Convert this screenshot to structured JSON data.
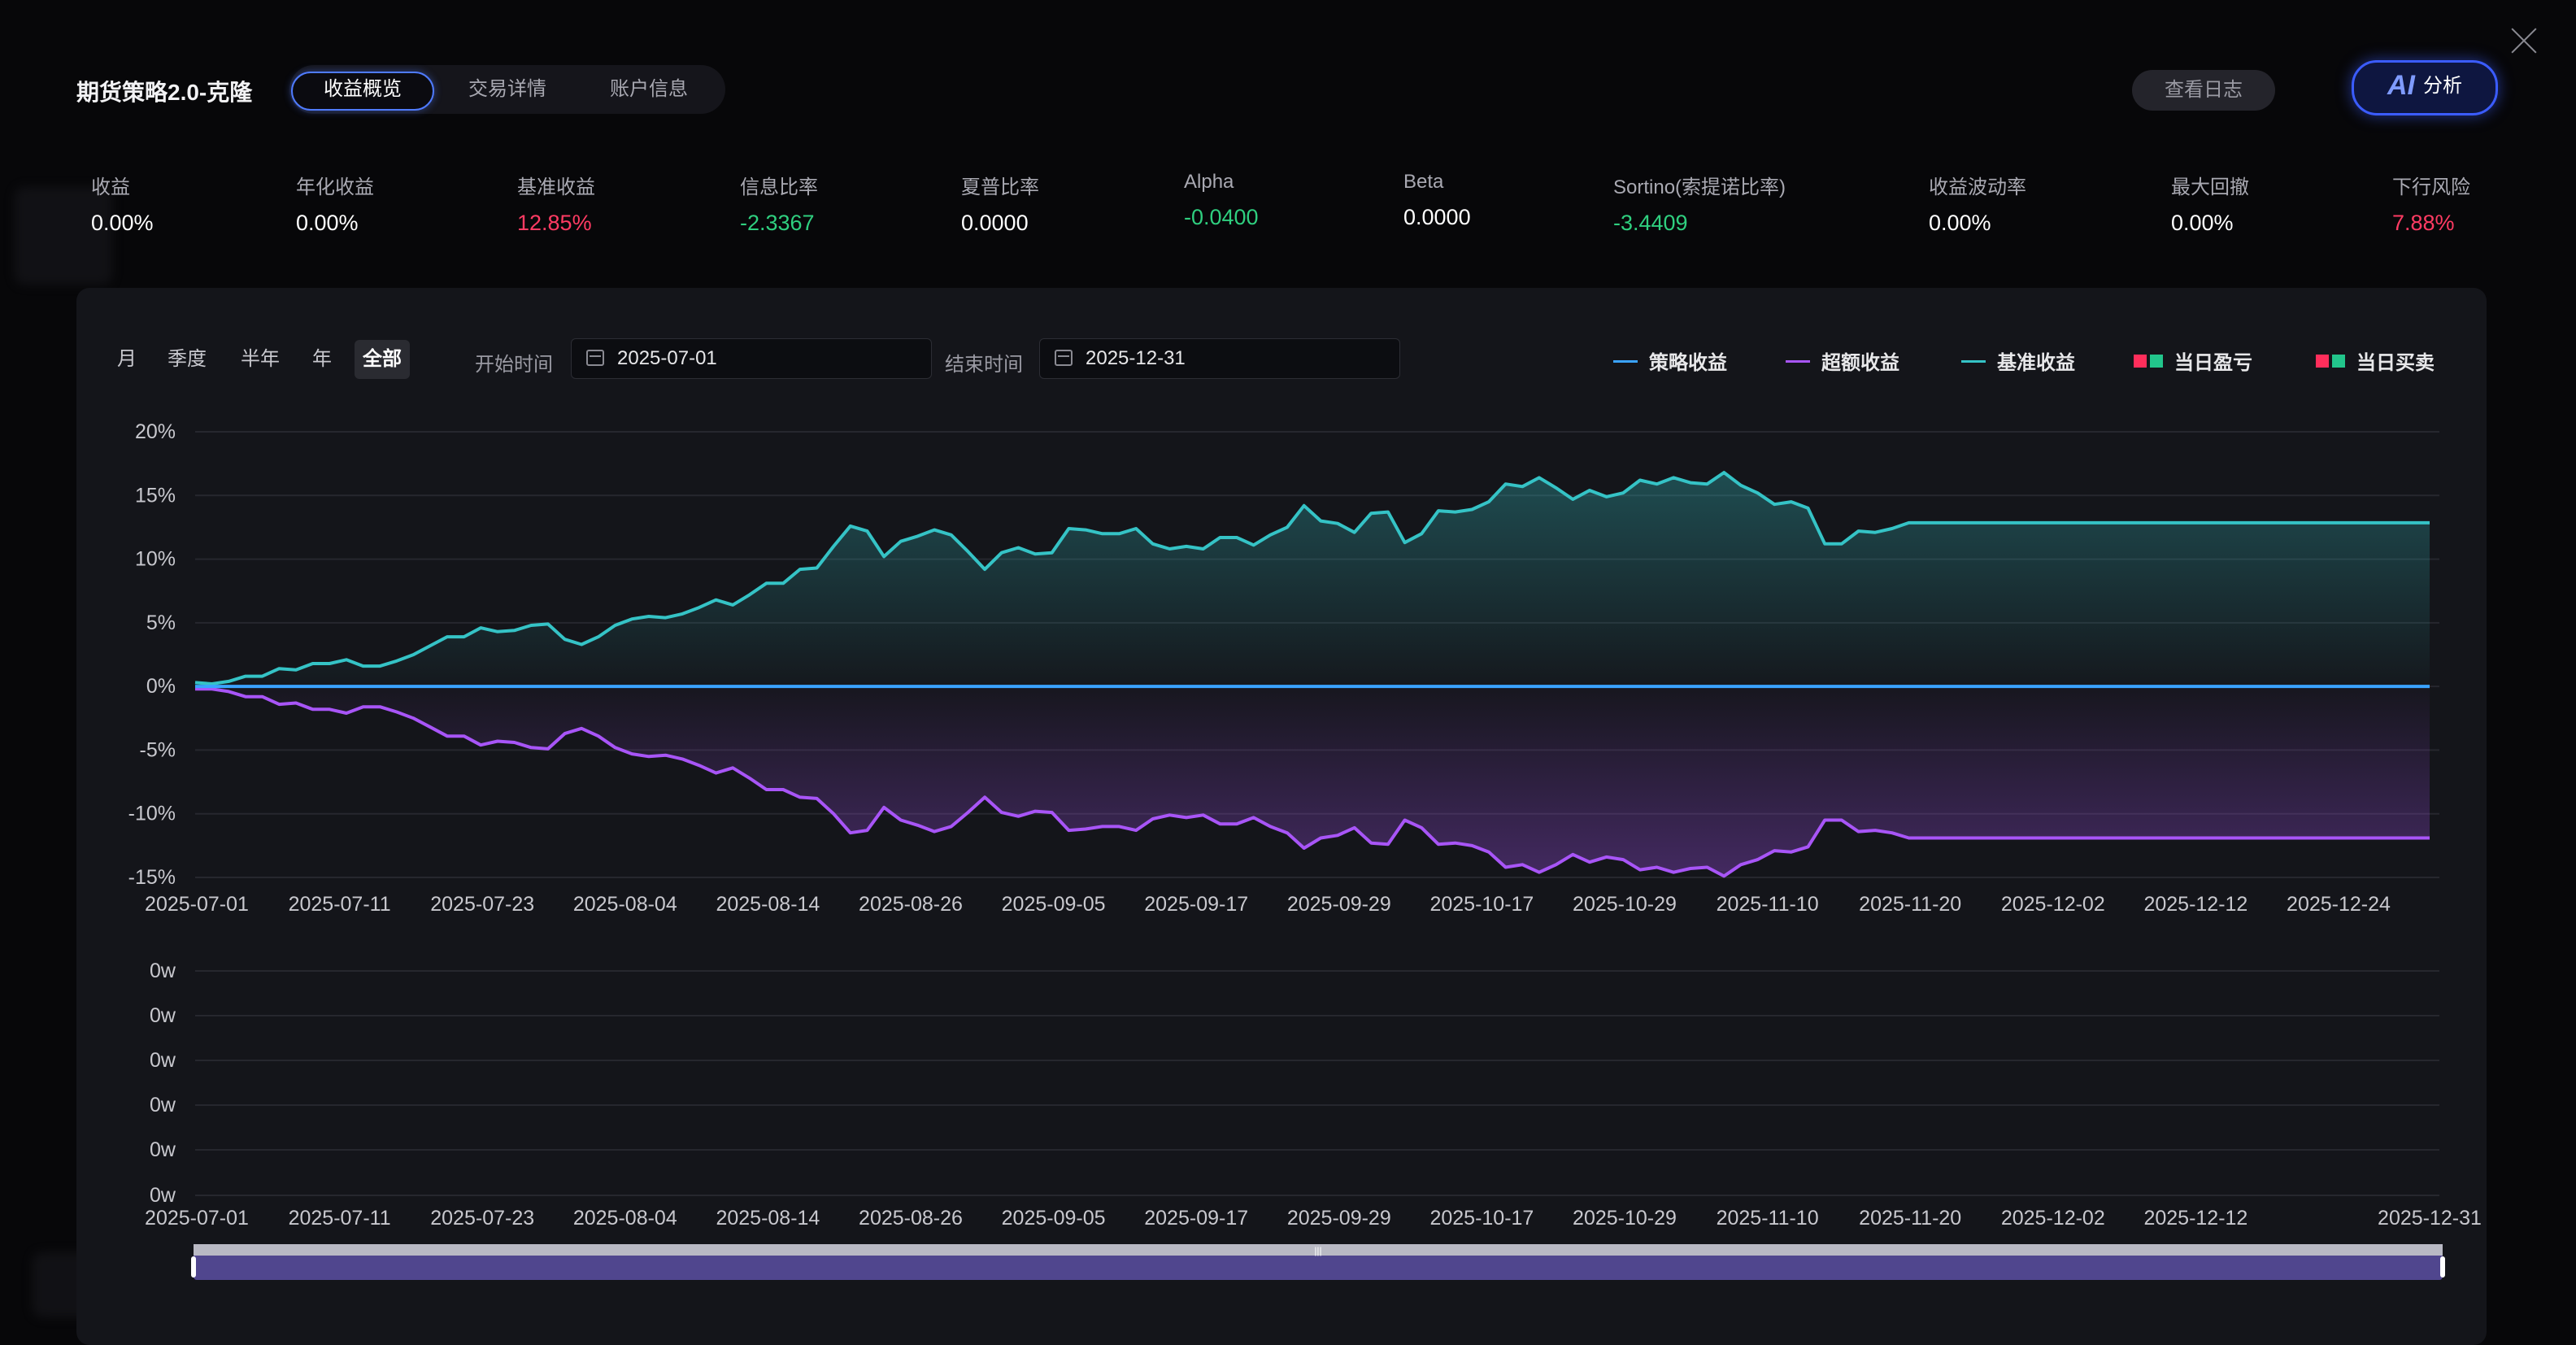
{
  "app": {
    "title": "期货策略2.0-克隆"
  },
  "tabs": [
    {
      "label": "收益概览"
    },
    {
      "label": "交易详情"
    },
    {
      "label": "账户信息"
    }
  ],
  "actions": {
    "log_label": "查看日志",
    "ai_mark": "AI",
    "ai_label": "分析"
  },
  "metrics": [
    {
      "label": "收益",
      "value": "0.00%"
    },
    {
      "label": "年化收益",
      "value": "0.00%"
    },
    {
      "label": "基准收益",
      "value": "12.85%",
      "tone": "pos"
    },
    {
      "label": "信息比率",
      "value": "-2.3367",
      "tone": "neg"
    },
    {
      "label": "夏普比率",
      "value": "0.0000"
    },
    {
      "label": "Alpha",
      "value": "-0.0400",
      "tone": "neg"
    },
    {
      "label": "Beta",
      "value": "0.0000"
    },
    {
      "label": "Sortino(索提诺比率)",
      "value": "-3.4409",
      "tone": "neg"
    },
    {
      "label": "收益波动率",
      "value": "0.00%"
    },
    {
      "label": "最大回撤",
      "value": "0.00%"
    },
    {
      "label": "下行风险",
      "value": "7.88%",
      "tone": "pos"
    }
  ],
  "filters": {
    "periods": [
      "月",
      "季度",
      "半年",
      "年",
      "全部"
    ],
    "active_period": "全部",
    "start_label": "开始时间",
    "start_value": "2025-07-01",
    "end_label": "结束时间",
    "end_value": "2025-12-31"
  },
  "legend": [
    {
      "label": "策略收益",
      "color": "#3aa3ff"
    },
    {
      "label": "超额收益",
      "color": "#a855f7"
    },
    {
      "label": "基准收益",
      "color": "#35c3c6"
    },
    {
      "label": "当日盈亏",
      "colors": [
        "#ff2e5b",
        "#22c58b"
      ]
    },
    {
      "label": "当日买卖",
      "colors": [
        "#ff2e5b",
        "#22c58b"
      ]
    }
  ],
  "chart_data": [
    {
      "type": "line",
      "x_ticks": [
        "2025-07-01",
        "2025-07-11",
        "2025-07-23",
        "2025-08-04",
        "2025-08-14",
        "2025-08-26",
        "2025-09-05",
        "2025-09-17",
        "2025-09-29",
        "2025-10-17",
        "2025-10-29",
        "2025-11-10",
        "2025-11-20",
        "2025-12-02",
        "2025-12-12",
        "2025-12-24"
      ],
      "y_ticks": [
        "20%",
        "15%",
        "10%",
        "5%",
        "0%",
        "-5%",
        "-10%",
        "-15%"
      ],
      "ylim": [
        -15,
        20
      ],
      "grid": true,
      "series": [
        {
          "name": "策略收益",
          "color": "#3aa3ff",
          "values": [
            0,
            0
          ]
        },
        {
          "name": "基准收益",
          "color": "#35c3c6",
          "values": [
            0.3,
            0.2,
            0.4,
            0.8,
            0.8,
            1.4,
            1.3,
            1.8,
            1.8,
            2.1,
            1.6,
            1.6,
            2.0,
            2.5,
            3.2,
            3.9,
            3.9,
            4.6,
            4.3,
            4.4,
            4.8,
            4.9,
            3.7,
            3.3,
            3.9,
            4.8,
            5.3,
            5.5,
            5.4,
            5.7,
            6.2,
            6.8,
            6.4,
            7.2,
            8.1,
            8.1,
            9.2,
            9.3,
            11.0,
            12.6,
            12.2,
            10.2,
            11.4,
            11.8,
            12.3,
            11.9,
            10.6,
            9.2,
            10.5,
            10.9,
            10.4,
            10.5,
            12.4,
            12.3,
            12.0,
            12.0,
            12.4,
            11.2,
            10.8,
            11.0,
            10.8,
            11.7,
            11.7,
            11.1,
            11.9,
            12.5,
            14.2,
            13.0,
            12.8,
            12.1,
            13.6,
            13.7,
            11.3,
            12.0,
            13.8,
            13.7,
            13.9,
            14.5,
            15.9,
            15.7,
            16.4,
            15.6,
            14.7,
            15.4,
            14.9,
            15.2,
            16.2,
            15.9,
            16.4,
            16.0,
            15.9,
            16.8,
            15.8,
            15.2,
            14.3,
            14.5,
            14.0,
            11.2,
            11.2,
            12.2,
            12.1,
            12.4,
            12.85,
            12.85,
            12.85,
            12.85,
            12.85,
            12.85,
            12.85,
            12.85,
            12.85,
            12.85,
            12.85,
            12.85,
            12.85,
            12.85,
            12.85,
            12.85,
            12.85,
            12.85,
            12.85,
            12.85,
            12.85,
            12.85,
            12.85,
            12.85,
            12.85,
            12.85,
            12.85,
            12.85,
            12.85,
            12.85,
            12.85,
            12.85
          ]
        },
        {
          "name": "超额收益",
          "color": "#a855f7",
          "values": [
            -0.2,
            -0.2,
            -0.4,
            -0.8,
            -0.8,
            -1.4,
            -1.3,
            -1.8,
            -1.8,
            -2.1,
            -1.6,
            -1.6,
            -2.0,
            -2.5,
            -3.2,
            -3.9,
            -3.9,
            -4.6,
            -4.3,
            -4.4,
            -4.8,
            -4.9,
            -3.7,
            -3.3,
            -3.9,
            -4.8,
            -5.3,
            -5.5,
            -5.4,
            -5.7,
            -6.2,
            -6.8,
            -6.4,
            -7.2,
            -8.1,
            -8.1,
            -8.7,
            -8.8,
            -10.0,
            -11.5,
            -11.3,
            -9.5,
            -10.5,
            -10.9,
            -11.4,
            -11.0,
            -9.9,
            -8.7,
            -9.9,
            -10.2,
            -9.8,
            -9.9,
            -11.3,
            -11.2,
            -11.0,
            -11.0,
            -11.3,
            -10.4,
            -10.1,
            -10.3,
            -10.1,
            -10.8,
            -10.8,
            -10.3,
            -11.0,
            -11.5,
            -12.7,
            -11.9,
            -11.7,
            -11.1,
            -12.3,
            -12.4,
            -10.5,
            -11.1,
            -12.4,
            -12.3,
            -12.5,
            -13.0,
            -14.2,
            -14.0,
            -14.6,
            -14.0,
            -13.2,
            -13.8,
            -13.4,
            -13.6,
            -14.4,
            -14.2,
            -14.6,
            -14.3,
            -14.2,
            -14.9,
            -14.0,
            -13.6,
            -12.9,
            -13.0,
            -12.6,
            -10.5,
            -10.5,
            -11.4,
            -11.3,
            -11.5,
            -11.9,
            -11.9,
            -11.9,
            -11.9,
            -11.9,
            -11.9,
            -11.9,
            -11.9,
            -11.9,
            -11.9,
            -11.9,
            -11.9,
            -11.9,
            -11.9,
            -11.9,
            -11.9,
            -11.9,
            -11.9,
            -11.9,
            -11.9,
            -11.9,
            -11.9,
            -11.9,
            -11.9,
            -11.9,
            -11.9,
            -11.9,
            -11.9,
            -11.9,
            -11.9,
            -11.9,
            -11.9
          ]
        }
      ]
    },
    {
      "type": "bar",
      "x_ticks": [
        "2025-07-01",
        "2025-07-11",
        "2025-07-23",
        "2025-08-04",
        "2025-08-14",
        "2025-08-26",
        "2025-09-05",
        "2025-09-17",
        "2025-09-29",
        "2025-10-17",
        "2025-10-29",
        "2025-11-10",
        "2025-11-20",
        "2025-12-02",
        "2025-12-12",
        "2025-12-31"
      ],
      "y_ticks": [
        "0w",
        "0w",
        "0w",
        "0w",
        "0w",
        "0w"
      ],
      "grid": true,
      "values": []
    }
  ]
}
